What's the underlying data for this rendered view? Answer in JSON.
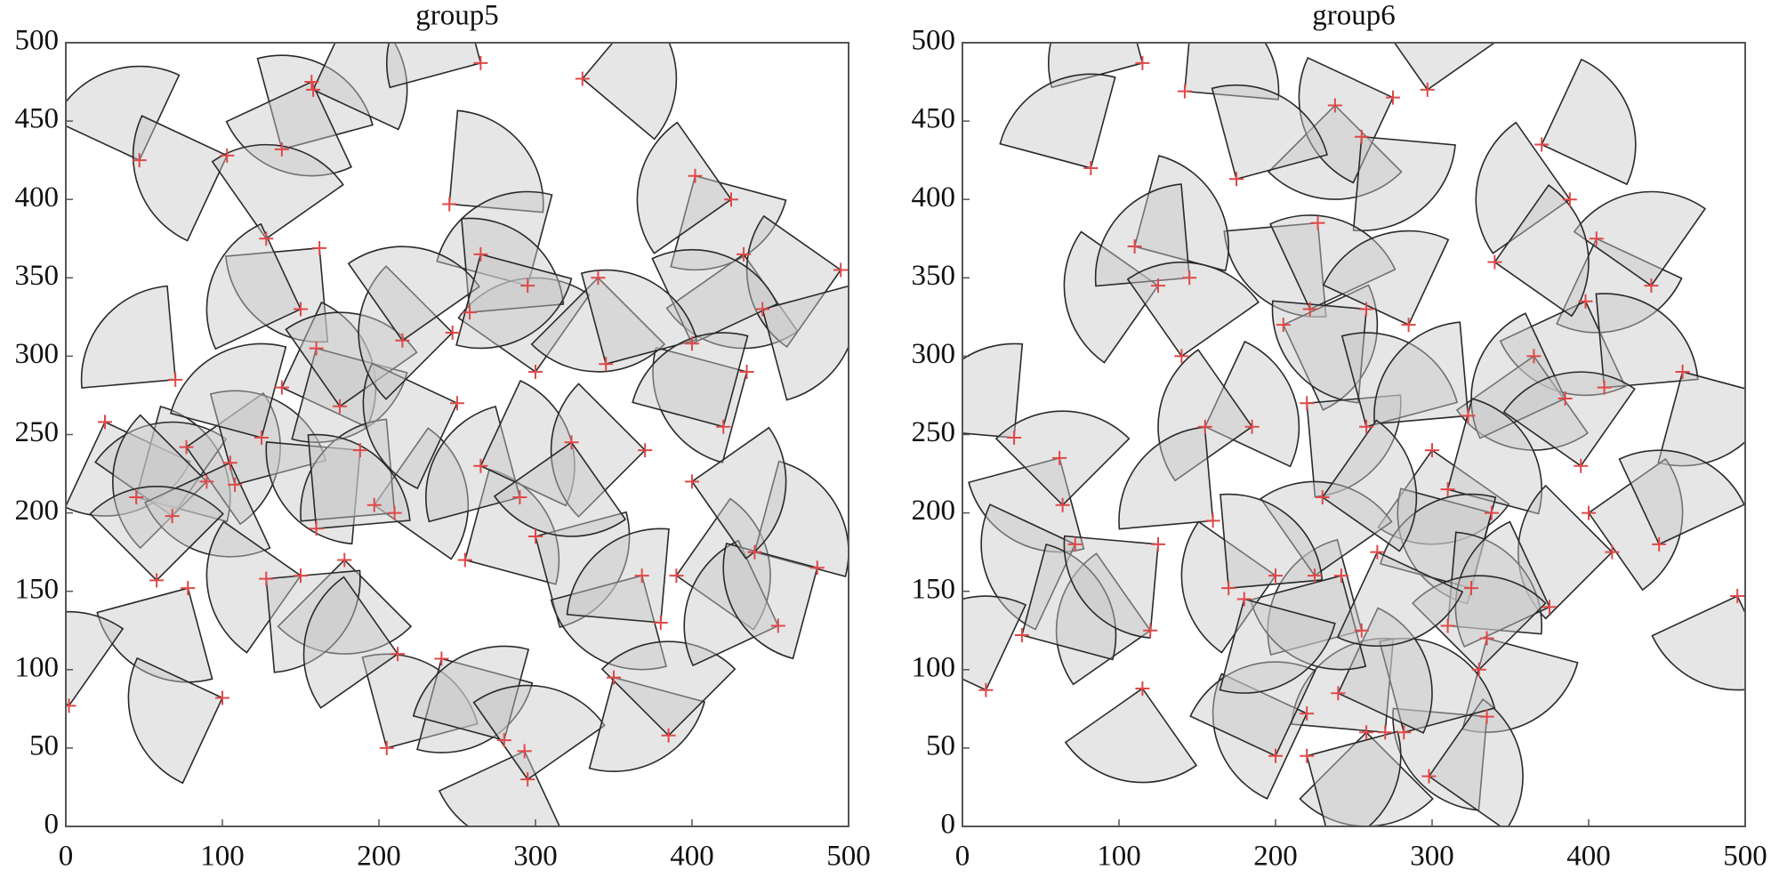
{
  "chart_data": [
    {
      "type": "scatter",
      "title": "group5",
      "x": [
        47,
        103,
        138,
        157,
        158,
        265,
        330,
        402,
        425,
        128,
        162,
        245,
        295,
        433,
        495,
        445,
        400,
        435,
        70,
        25,
        45,
        68,
        77,
        90,
        108,
        105,
        125,
        138,
        150,
        160,
        175,
        188,
        197,
        210,
        178,
        160,
        150,
        128,
        58,
        78,
        100,
        2,
        205,
        212,
        240,
        255,
        280,
        293,
        295,
        300,
        290,
        265,
        250,
        300,
        340,
        345,
        370,
        390,
        368,
        380,
        350,
        385,
        455,
        440,
        480,
        400,
        420,
        323,
        258,
        247,
        215,
        265
      ],
      "y": [
        425,
        428,
        432,
        475,
        470,
        487,
        477,
        415,
        400,
        375,
        369,
        397,
        345,
        365,
        355,
        330,
        308,
        290,
        285,
        258,
        210,
        198,
        242,
        220,
        218,
        232,
        248,
        280,
        330,
        305,
        268,
        240,
        205,
        200,
        170,
        190,
        160,
        158,
        157,
        152,
        82,
        77,
        50,
        110,
        107,
        170,
        55,
        48,
        30,
        185,
        210,
        230,
        270,
        290,
        350,
        295,
        240,
        160,
        160,
        130,
        95,
        58,
        128,
        175,
        165,
        220,
        255,
        245,
        328,
        315,
        310,
        365
      ],
      "angles": [
        110,
        200,
        60,
        250,
        20,
        150,
        5,
        300,
        170,
        80,
        230,
        40,
        120,
        260,
        190,
        330,
        70,
        210,
        140,
        290,
        30,
        100,
        350,
        180,
        60,
        250,
        120,
        20,
        160,
        300,
        80,
        220,
        10,
        140,
        270,
        50,
        190,
        320,
        90,
        240,
        200,
        100,
        60,
        170,
        300,
        30,
        120,
        250,
        80,
        330,
        150,
        20,
        200,
        100,
        270,
        60,
        180,
        10,
        240,
        130,
        300,
        90,
        160,
        30,
        210,
        350,
        120,
        260,
        50,
        180,
        80,
        300
      ],
      "sector_radius": 60,
      "sector_span": 90,
      "xlim": [
        0,
        500
      ],
      "ylim": [
        0,
        500
      ],
      "xticks": [
        0,
        100,
        200,
        300,
        400,
        500
      ],
      "yticks": [
        0,
        50,
        100,
        150,
        200,
        250,
        300,
        350,
        400,
        450,
        500
      ],
      "color": "#c8c8c8",
      "marker_color": "#e04848"
    },
    {
      "type": "scatter",
      "title": "group6",
      "x": [
        115,
        142,
        238,
        275,
        297,
        255,
        82,
        175,
        227,
        370,
        388,
        405,
        440,
        398,
        110,
        125,
        145,
        205,
        222,
        258,
        285,
        340,
        365,
        385,
        410,
        460,
        33,
        62,
        64,
        72,
        155,
        185,
        220,
        258,
        300,
        323,
        310,
        338,
        395,
        400,
        415,
        445,
        495,
        325,
        310,
        335,
        375,
        330,
        335,
        298,
        258,
        270,
        282,
        220,
        200,
        220,
        240,
        255,
        242,
        225,
        200,
        180,
        170,
        120,
        115,
        15,
        38,
        125,
        160,
        230,
        265,
        140
      ],
      "y": [
        487,
        469,
        460,
        465,
        470,
        440,
        420,
        413,
        385,
        435,
        400,
        375,
        345,
        335,
        370,
        345,
        350,
        320,
        330,
        330,
        320,
        360,
        300,
        273,
        280,
        290,
        248,
        235,
        205,
        180,
        255,
        255,
        270,
        255,
        240,
        262,
        215,
        200,
        230,
        200,
        175,
        180,
        147,
        152,
        128,
        120,
        140,
        100,
        70,
        32,
        60,
        60,
        60,
        72,
        45,
        45,
        85,
        125,
        160,
        160,
        160,
        145,
        152,
        125,
        88,
        87,
        122,
        180,
        195,
        210,
        175,
        300
      ],
      "angles": [
        150,
        40,
        270,
        200,
        80,
        310,
        120,
        60,
        230,
        20,
        170,
        290,
        100,
        250,
        30,
        190,
        140,
        340,
        70,
        220,
        110,
        10,
        260,
        160,
        50,
        300,
        130,
        240,
        90,
        200,
        20,
        170,
        320,
        60,
        280,
        140,
        30,
        210,
        100,
        350,
        180,
        70,
        250,
        120,
        40,
        300,
        160,
        90,
        220,
        10,
        270,
        130,
        60,
        200,
        110,
        330,
        20,
        150,
        240,
        80,
        190,
        300,
        50,
        170,
        260,
        110,
        30,
        220,
        140,
        10,
        290,
        80
      ],
      "sector_radius": 60,
      "sector_span": 90,
      "xlim": [
        0,
        500
      ],
      "ylim": [
        0,
        500
      ],
      "xticks": [
        0,
        100,
        200,
        300,
        400,
        500
      ],
      "yticks": [
        0,
        50,
        100,
        150,
        200,
        250,
        300,
        350,
        400,
        450,
        500
      ],
      "color": "#c8c8c8",
      "marker_color": "#e04848"
    }
  ]
}
